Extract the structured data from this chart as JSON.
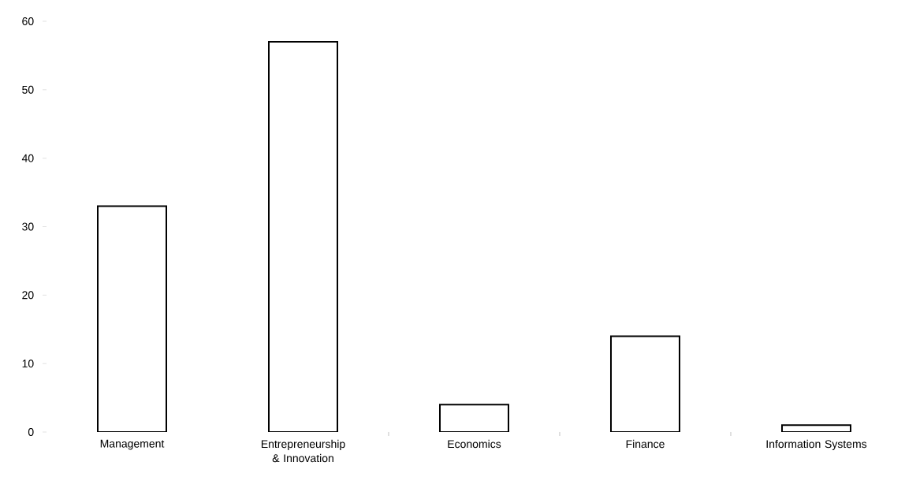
{
  "chart_data": {
    "type": "bar",
    "categories": [
      "Management",
      "Entrepreneurship & Innovation",
      "Economics",
      "Finance",
      "Information Systems"
    ],
    "values": [
      33,
      57,
      4,
      14,
      1
    ],
    "color": "#ffffff",
    "ylim": [
      0,
      60
    ],
    "yticks": [
      0,
      10,
      20,
      30,
      40,
      50,
      60
    ]
  }
}
